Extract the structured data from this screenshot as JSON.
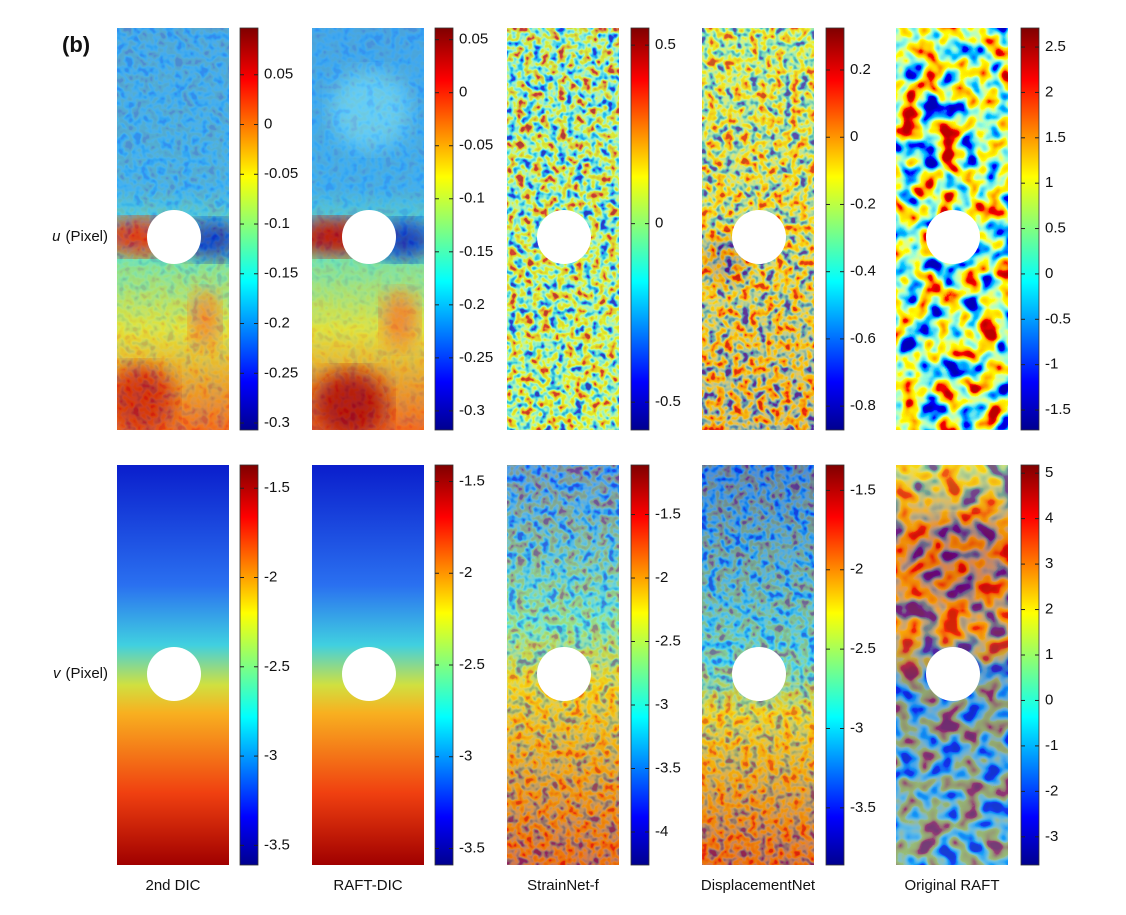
{
  "figure": {
    "panel_label": "(b)",
    "row_labels": [
      {
        "symbol": "u",
        "unit": "(Pixel)"
      },
      {
        "symbol": "v",
        "unit": "(Pixel)"
      }
    ],
    "column_labels": [
      "2nd DIC",
      "RAFT-DIC",
      "StrainNet-f",
      "DisplacementNet",
      "Original RAFT"
    ],
    "colormap": "jet",
    "panels": [
      [
        {
          "clim": [
            -0.307,
            0.097
          ],
          "ticks": [
            0.05,
            0,
            -0.05,
            -0.1,
            -0.15,
            -0.2,
            -0.25,
            -0.3
          ]
        },
        {
          "clim": [
            -0.318,
            0.061
          ],
          "ticks": [
            0.05,
            0,
            -0.05,
            -0.1,
            -0.15,
            -0.2,
            -0.25,
            -0.3
          ]
        },
        {
          "clim": [
            -0.578,
            0.548
          ],
          "ticks": [
            0.5,
            0,
            -0.5
          ]
        },
        {
          "clim": [
            -0.871,
            0.325
          ],
          "ticks": [
            0.2,
            0,
            -0.2,
            -0.4,
            -0.6,
            -0.8
          ]
        },
        {
          "clim": [
            -1.72,
            2.71
          ],
          "ticks": [
            2.5,
            2,
            1.5,
            1,
            0.5,
            0,
            -0.5,
            -1,
            -1.5
          ]
        }
      ],
      [
        {
          "clim": [
            -3.61,
            -1.37
          ],
          "ticks": [
            -1.5,
            -2,
            -2.5,
            -3,
            -3.5
          ]
        },
        {
          "clim": [
            -3.59,
            -1.41
          ],
          "ticks": [
            -1.5,
            -2,
            -2.5,
            -3,
            -3.5
          ]
        },
        {
          "clim": [
            -4.26,
            -1.11
          ],
          "ticks": [
            -1.5,
            -2,
            -2.5,
            -3,
            -3.5,
            -4
          ]
        },
        {
          "clim": [
            -3.86,
            -1.34
          ],
          "ticks": [
            -1.5,
            -2,
            -2.5,
            -3,
            -3.5
          ]
        },
        {
          "clim": [
            -3.62,
            5.18
          ],
          "ticks": [
            5,
            4,
            3,
            2,
            1,
            0,
            -1,
            -2,
            -3
          ]
        }
      ]
    ]
  }
}
